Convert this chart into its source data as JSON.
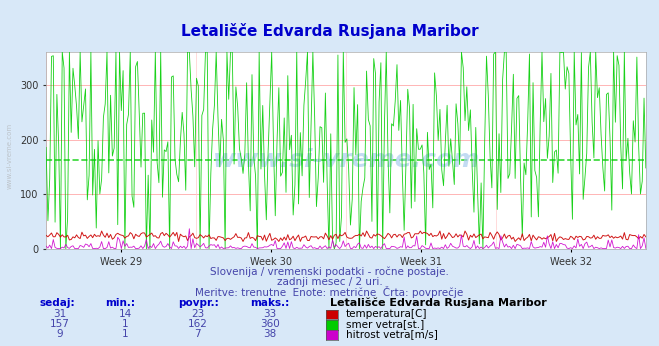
{
  "title": "Letališče Edvarda Rusjana Maribor",
  "bg_color": "#d8e8f8",
  "plot_bg_color": "#ffffff",
  "grid_color_h": "#ff9999",
  "grid_color_v": "#ffcccc",
  "avg_line_color": "#00cc00",
  "avg_line_value": 162,
  "y_min": 0,
  "y_max": 360,
  "y_ticks": [
    0,
    100,
    200,
    300
  ],
  "week_labels": [
    "Week 29",
    "Week 30",
    "Week 31",
    "Week 32"
  ],
  "subtitle1": "Slovenija / vremenski podatki - ročne postaje.",
  "subtitle2": "zadnji mesec / 2 uri.",
  "subtitle3": "Meritve: trenutne  Enote: metrične  Črta: povprečje",
  "legend_title": "Letališče Edvarda Rusjana Maribor",
  "legend_entries": [
    {
      "label": "temperatura[C]",
      "color": "#cc0000"
    },
    {
      "label": "smer vetra[st.]",
      "color": "#00cc00"
    },
    {
      "label": "hitrost vetra[m/s]",
      "color": "#cc00cc"
    }
  ],
  "table_headers": [
    "sedaj:",
    "min.:",
    "povpr.:",
    "maks.:"
  ],
  "table_data": [
    [
      31,
      14,
      23,
      33
    ],
    [
      157,
      1,
      162,
      360
    ],
    [
      9,
      1,
      7,
      38
    ]
  ],
  "n_points": 336,
  "temp_min": 14,
  "temp_max": 33,
  "temp_avg": 23,
  "wind_dir_min": 1,
  "wind_dir_max": 360,
  "wind_dir_avg": 162,
  "wind_spd_min": 1,
  "wind_spd_max": 38,
  "wind_spd_avg": 7,
  "watermark": "www.si-vreme.com"
}
